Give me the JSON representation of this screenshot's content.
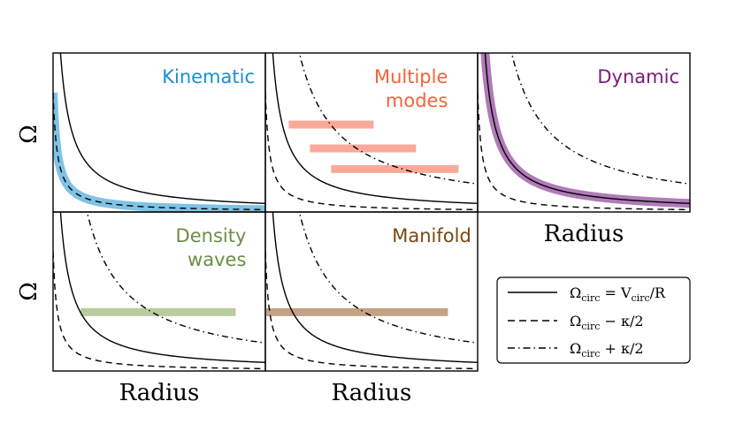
{
  "figure": {
    "y_axis_label": "Ω",
    "x_axis_label": "Radius"
  },
  "legend": {
    "placement": "bottom-right",
    "entries": [
      {
        "style": "solid",
        "main": "Ω",
        "sub": "circ",
        "rest": " = V",
        "sub2": "circ",
        "tail": "/R"
      },
      {
        "style": "dashed",
        "main": "Ω",
        "sub": "circ",
        "rest": " − κ/2",
        "sub2": "",
        "tail": ""
      },
      {
        "style": "dashdot",
        "main": "Ω",
        "sub": "circ",
        "rest": " + κ/2",
        "sub2": "",
        "tail": ""
      }
    ]
  },
  "colors": {
    "kinematic": "#1a8fd0",
    "kinematic_band": "#7fc3e6",
    "multiple_modes": "#f4623a",
    "multiple_modes_band": "#f9a99a",
    "dynamic": "#7b1a7b",
    "dynamic_band": "#b07bb8",
    "density_waves": "#6b8e45",
    "density_waves_band": "#b8cc9f",
    "manifold": "#7a4712",
    "manifold_band": "#c4a286"
  },
  "chart_data": [
    {
      "type": "line",
      "title": "Kinematic",
      "xlabel": "",
      "ylabel": "Ω",
      "xlim": [
        0,
        1
      ],
      "ylim": [
        0,
        1
      ],
      "grid": false,
      "series": [
        {
          "name": "Ω_circ = V_circ/R",
          "style": "solid",
          "a": 0.055,
          "c": 0.0
        },
        {
          "name": "Ω_circ − κ/2",
          "style": "dashed",
          "a": 0.015,
          "c": 0.0
        },
        {
          "name": "highlight",
          "style": "band",
          "a": 0.015,
          "c": 0.0
        }
      ],
      "bars": []
    },
    {
      "type": "line",
      "title": "Multiple modes",
      "title_lines": [
        "Multiple",
        "modes"
      ],
      "xlabel": "",
      "ylabel": "",
      "xlim": [
        0,
        1
      ],
      "ylim": [
        0,
        1
      ],
      "grid": false,
      "series": [
        {
          "name": "Ω_circ = V_circ/R",
          "style": "solid",
          "a": 0.055,
          "c": 0.0
        },
        {
          "name": "Ω_circ − κ/2",
          "style": "dashed",
          "a": 0.015,
          "c": 0.0
        },
        {
          "name": "Ω_circ + κ/2",
          "style": "dashdot",
          "a": 0.18,
          "c": 0.0
        }
      ],
      "bars": [
        {
          "x_start": 0.11,
          "x_end": 0.51,
          "y": 0.55
        },
        {
          "x_start": 0.21,
          "x_end": 0.71,
          "y": 0.4
        },
        {
          "x_start": 0.31,
          "x_end": 0.91,
          "y": 0.27
        }
      ]
    },
    {
      "type": "line",
      "title": "Dynamic",
      "xlabel": "Radius",
      "ylabel": "",
      "xlim": [
        0,
        1
      ],
      "ylim": [
        0,
        1
      ],
      "grid": false,
      "series": [
        {
          "name": "Ω_circ = V_circ/R",
          "style": "solid",
          "a": 0.055,
          "c": 0.0
        },
        {
          "name": "Ω_circ − κ/2",
          "style": "dashed",
          "a": 0.015,
          "c": 0.0
        },
        {
          "name": "Ω_circ + κ/2",
          "style": "dashdot",
          "a": 0.18,
          "c": 0.0
        },
        {
          "name": "highlight",
          "style": "band",
          "a": 0.055,
          "c": 0.0
        }
      ],
      "bars": []
    },
    {
      "type": "line",
      "title": "Density waves",
      "title_lines": [
        "Density",
        "waves"
      ],
      "xlabel": "Radius",
      "ylabel": "Ω",
      "xlim": [
        0,
        1
      ],
      "ylim": [
        0,
        1
      ],
      "grid": false,
      "series": [
        {
          "name": "Ω_circ = V_circ/R",
          "style": "solid",
          "a": 0.055,
          "c": 0.0
        },
        {
          "name": "Ω_circ − κ/2",
          "style": "dashed",
          "a": 0.015,
          "c": 0.0
        },
        {
          "name": "Ω_circ + κ/2",
          "style": "dashdot",
          "a": 0.18,
          "c": 0.0
        }
      ],
      "bars": [
        {
          "x_start": 0.13,
          "x_end": 0.86,
          "y": 0.37
        }
      ]
    },
    {
      "type": "line",
      "title": "Manifold",
      "xlabel": "Radius",
      "ylabel": "",
      "xlim": [
        0,
        1
      ],
      "ylim": [
        0,
        1
      ],
      "grid": false,
      "series": [
        {
          "name": "Ω_circ = V_circ/R",
          "style": "solid",
          "a": 0.055,
          "c": 0.0
        },
        {
          "name": "Ω_circ − κ/2",
          "style": "dashed",
          "a": 0.015,
          "c": 0.0
        },
        {
          "name": "Ω_circ + κ/2",
          "style": "dashdot",
          "a": 0.18,
          "c": 0.0
        }
      ],
      "bars": [
        {
          "x_start": 0.0,
          "x_end": 0.86,
          "y": 0.37
        }
      ]
    }
  ]
}
